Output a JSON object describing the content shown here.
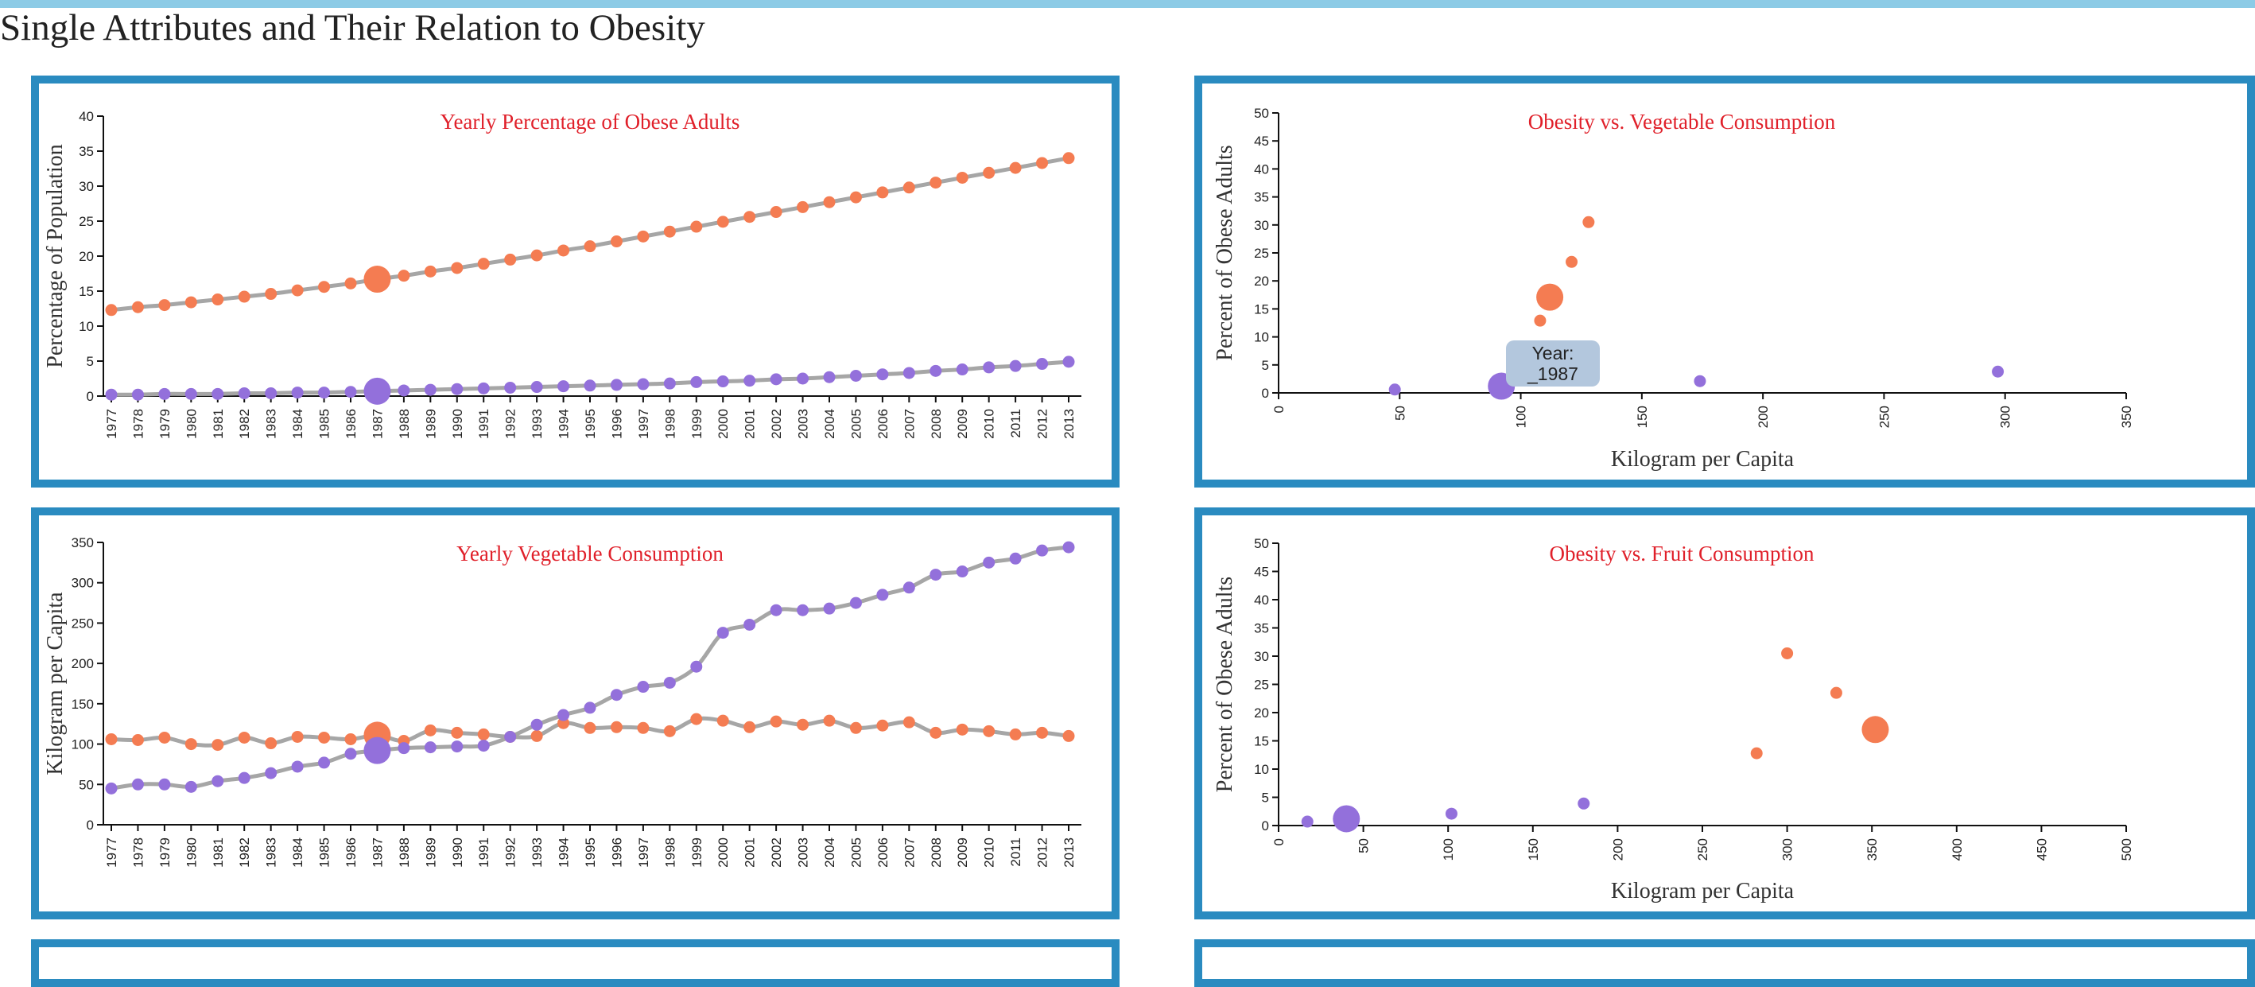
{
  "page": {
    "title": "Single Attributes and Their Relation to Obesity"
  },
  "colors": {
    "banner": "#8ccbe6",
    "panel_border": "#2a8bc0",
    "orange": "#f47c52",
    "purple": "#9370db",
    "line": "#a6a6a6",
    "title_red": "#e0202a",
    "tooltip_bg": "#b3c7dd"
  },
  "highlight_year": "1987",
  "tooltip": {
    "line1": "Year:",
    "line2": "_1987"
  },
  "chart_data": [
    {
      "id": "obesity-line",
      "type": "line",
      "title": "Yearly Percentage of Obese Adults",
      "xlabel": "",
      "ylabel": "Percentage of Population",
      "ylim": [
        0,
        40
      ],
      "yticks": [
        0,
        5,
        10,
        15,
        20,
        25,
        30,
        35,
        40
      ],
      "categories": [
        "1977",
        "1978",
        "1979",
        "1980",
        "1981",
        "1982",
        "1983",
        "1984",
        "1985",
        "1986",
        "1987",
        "1988",
        "1989",
        "1990",
        "1991",
        "1992",
        "1993",
        "1994",
        "1995",
        "1996",
        "1997",
        "1998",
        "1999",
        "2000",
        "2001",
        "2002",
        "2003",
        "2004",
        "2005",
        "2006",
        "2007",
        "2008",
        "2009",
        "2010",
        "2011",
        "2012",
        "2013"
      ],
      "series": [
        {
          "color": "#f47c52",
          "values": [
            12.3,
            12.7,
            13.0,
            13.4,
            13.8,
            14.2,
            14.6,
            15.1,
            15.6,
            16.1,
            16.7,
            17.2,
            17.8,
            18.3,
            18.9,
            19.5,
            20.1,
            20.8,
            21.4,
            22.1,
            22.8,
            23.5,
            24.2,
            24.9,
            25.6,
            26.3,
            27.0,
            27.7,
            28.4,
            29.1,
            29.8,
            30.5,
            31.2,
            31.9,
            32.6,
            33.3,
            34.0
          ]
        },
        {
          "color": "#9370db",
          "values": [
            0.2,
            0.2,
            0.3,
            0.3,
            0.3,
            0.4,
            0.4,
            0.5,
            0.5,
            0.6,
            0.7,
            0.8,
            0.9,
            1.0,
            1.1,
            1.2,
            1.3,
            1.4,
            1.5,
            1.6,
            1.7,
            1.8,
            2.0,
            2.1,
            2.2,
            2.4,
            2.5,
            2.7,
            2.9,
            3.1,
            3.3,
            3.6,
            3.8,
            4.1,
            4.3,
            4.6,
            4.9
          ]
        }
      ]
    },
    {
      "id": "vegetable-line",
      "type": "line",
      "title": "Yearly Vegetable Consumption",
      "xlabel": "",
      "ylabel": "Kilogram per Capita",
      "ylim": [
        0,
        350
      ],
      "yticks": [
        0,
        50,
        100,
        150,
        200,
        250,
        300,
        350
      ],
      "categories": [
        "1977",
        "1978",
        "1979",
        "1980",
        "1981",
        "1982",
        "1983",
        "1984",
        "1985",
        "1986",
        "1987",
        "1988",
        "1989",
        "1990",
        "1991",
        "1992",
        "1993",
        "1994",
        "1995",
        "1996",
        "1997",
        "1998",
        "1999",
        "2000",
        "2001",
        "2002",
        "2003",
        "2004",
        "2005",
        "2006",
        "2007",
        "2008",
        "2009",
        "2010",
        "2011",
        "2012",
        "2013"
      ],
      "series": [
        {
          "color": "#f47c52",
          "values": [
            106,
            105,
            108,
            100,
            99,
            108,
            101,
            109,
            108,
            106,
            111,
            104,
            117,
            114,
            112,
            109,
            110,
            126,
            120,
            121,
            120,
            116,
            131,
            129,
            121,
            128,
            124,
            129,
            120,
            123,
            127,
            114,
            118,
            116,
            112,
            114,
            110
          ]
        },
        {
          "color": "#9370db",
          "values": [
            45,
            50,
            50,
            47,
            54,
            58,
            64,
            72,
            77,
            88,
            92,
            95,
            96,
            97,
            98,
            109,
            124,
            136,
            145,
            161,
            171,
            176,
            196,
            238,
            248,
            266,
            266,
            268,
            275,
            285,
            294,
            310,
            314,
            325,
            330,
            340,
            344
          ]
        }
      ]
    },
    {
      "id": "veg-scatter",
      "type": "scatter",
      "title": "Obesity vs. Vegetable Consumption",
      "xlabel": "Kilogram per Capita",
      "ylabel": "Percent of Obese Adults",
      "xlim": [
        0,
        350
      ],
      "ylim": [
        0,
        50
      ],
      "xticks": [
        0,
        50,
        100,
        150,
        200,
        250,
        300,
        350
      ],
      "yticks": [
        0,
        5,
        10,
        15,
        20,
        25,
        30,
        35,
        40,
        45,
        50
      ],
      "series": [
        {
          "color": "#f47c52",
          "points": [
            {
              "x": 108,
              "y": 12.9,
              "hl": false
            },
            {
              "x": 112,
              "y": 17.1,
              "hl": true
            },
            {
              "x": 121,
              "y": 23.4,
              "hl": false
            },
            {
              "x": 128,
              "y": 30.5,
              "hl": false
            }
          ]
        },
        {
          "color": "#9370db",
          "points": [
            {
              "x": 48,
              "y": 0.6,
              "hl": false
            },
            {
              "x": 92,
              "y": 1.2,
              "hl": true
            },
            {
              "x": 174,
              "y": 2.1,
              "hl": false
            },
            {
              "x": 297,
              "y": 3.8,
              "hl": false
            }
          ]
        }
      ]
    },
    {
      "id": "fruit-scatter",
      "type": "scatter",
      "title": "Obesity vs. Fruit Consumption",
      "xlabel": "Kilogram per Capita",
      "ylabel": "Percent of Obese Adults",
      "xlim": [
        0,
        500
      ],
      "ylim": [
        0,
        50
      ],
      "xticks": [
        0,
        50,
        100,
        150,
        200,
        250,
        300,
        350,
        400,
        450,
        500
      ],
      "yticks": [
        0,
        5,
        10,
        15,
        20,
        25,
        30,
        35,
        40,
        45,
        50
      ],
      "series": [
        {
          "color": "#f47c52",
          "points": [
            {
              "x": 282,
              "y": 12.8,
              "hl": false
            },
            {
              "x": 300,
              "y": 30.5,
              "hl": false
            },
            {
              "x": 329,
              "y": 23.5,
              "hl": false
            },
            {
              "x": 352,
              "y": 17.0,
              "hl": true
            }
          ]
        },
        {
          "color": "#9370db",
          "points": [
            {
              "x": 17,
              "y": 0.7,
              "hl": false
            },
            {
              "x": 40,
              "y": 1.2,
              "hl": true
            },
            {
              "x": 102,
              "y": 2.1,
              "hl": false
            },
            {
              "x": 180,
              "y": 3.9,
              "hl": false
            }
          ]
        }
      ]
    }
  ]
}
